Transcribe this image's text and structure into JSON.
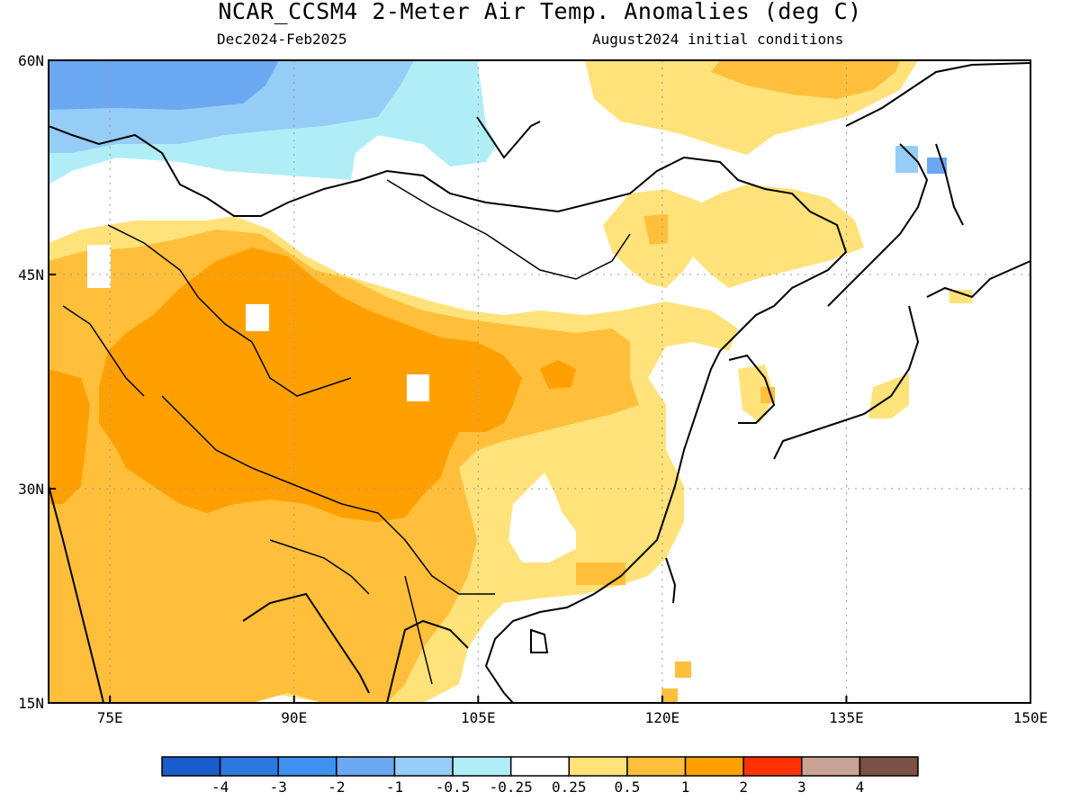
{
  "title": "NCAR_CCSM4 2-Meter Air Temp. Anomalies (deg C)",
  "subtitle_left": "Dec2024-Feb2025",
  "subtitle_right": "August2024 initial conditions",
  "map": {
    "lon_range": [
      70,
      150
    ],
    "lat_range": [
      15,
      60
    ],
    "lon_ticks": [
      {
        "value": 75,
        "label": "75E"
      },
      {
        "value": 90,
        "label": "90E"
      },
      {
        "value": 105,
        "label": "105E"
      },
      {
        "value": 120,
        "label": "120E"
      },
      {
        "value": 135,
        "label": "135E"
      },
      {
        "value": 150,
        "label": "150E"
      }
    ],
    "lat_ticks": [
      {
        "value": 60,
        "label": "60N"
      },
      {
        "value": 45,
        "label": "45N"
      },
      {
        "value": 30,
        "label": "30N"
      },
      {
        "value": 15,
        "label": "15N"
      }
    ]
  },
  "colorbar": {
    "colors": [
      "#1a5ccc",
      "#2a78e0",
      "#3e91f0",
      "#6aa8f2",
      "#96cdf7",
      "#b0eef7",
      "#ffffff",
      "#ffe27a",
      "#ffbf3a",
      "#ffa000",
      "#ff3200",
      "#c9a393",
      "#7a5142"
    ],
    "labels": [
      "-4",
      "-3",
      "-2",
      "-1",
      "-0.5",
      "-0.25",
      "0.25",
      "0.5",
      "1",
      "2",
      "3",
      "4"
    ]
  },
  "colors": {
    "blue_strong": "#6aa8f2",
    "blue_light": "#96cdf7",
    "cyan": "#b0eef7",
    "yellow": "#ffe27a",
    "orange_light": "#ffbf3a",
    "orange": "#ffa000"
  }
}
